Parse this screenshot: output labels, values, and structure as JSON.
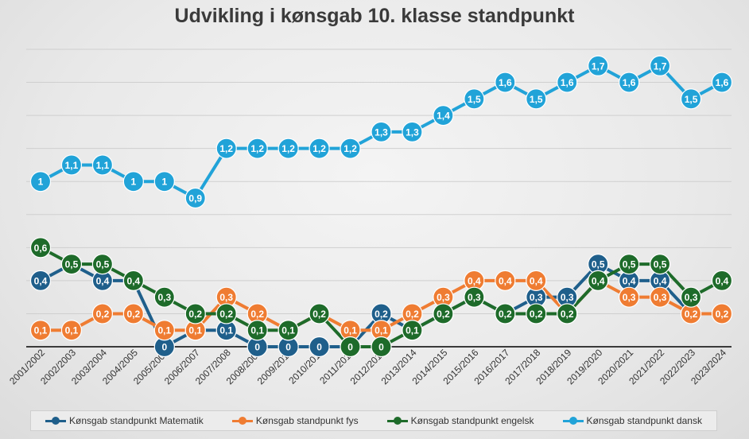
{
  "chart_data": {
    "type": "line",
    "title": "Udvikling i kønsgab 10. klasse standpunkt",
    "categories": [
      "2001/2002",
      "2002/2003",
      "2003/2004",
      "2004/2005",
      "2005/2006",
      "2006/2007",
      "2007/2008",
      "2008/2009",
      "2009/2010",
      "2010/2011",
      "2011/2012",
      "2012/2013",
      "2013/2014",
      "2014/2015",
      "2015/2016",
      "2016/2017",
      "2017/2018",
      "2018/2019",
      "2019/2020",
      "2020/2021",
      "2021/2022",
      "2022/2023",
      "2023/2024"
    ],
    "ylim": [
      0,
      1.8
    ],
    "grid": true,
    "legend_position": "bottom",
    "series": [
      {
        "name": "Kønsgab standpunkt Matematik",
        "color": "#1f5f8b",
        "values": [
          0.4,
          0.5,
          0.4,
          0.4,
          0,
          0.1,
          0.1,
          0,
          0,
          0,
          0,
          0.2,
          0.1,
          0.2,
          0.3,
          0.2,
          0.3,
          0.3,
          0.5,
          0.4,
          0.4,
          0.2,
          0.2
        ],
        "labels": [
          "0,4",
          "0,5",
          "0,4",
          "0,4",
          "0",
          "0,1",
          "0,1",
          "0",
          "0",
          "0",
          "0",
          "0,2",
          "0,1",
          "0,2",
          "0,3",
          "0,2",
          "0,3",
          "0,3",
          "0,5",
          "0,4",
          "0,4",
          "0,2",
          "0,2"
        ]
      },
      {
        "name": "Kønsgab standpunkt fys",
        "color": "#ef7c32",
        "values": [
          0.1,
          0.1,
          0.2,
          0.2,
          0.1,
          0.1,
          0.3,
          0.2,
          0.1,
          0.2,
          0.1,
          0.1,
          0.2,
          0.3,
          0.4,
          0.4,
          0.4,
          0.2,
          0.4,
          0.3,
          0.3,
          0.2,
          0.2
        ],
        "labels": [
          "0,1",
          "0,1",
          "0,2",
          "0,2",
          "0,1",
          "0,1",
          "0,3",
          "0,2",
          "0,1",
          "0,2",
          "0,1",
          "0,1",
          "0,2",
          "0,3",
          "0,4",
          "0,4",
          "0,4",
          "0,2",
          "0,4",
          "0,3",
          "0,3",
          "0,2",
          "0,2"
        ]
      },
      {
        "name": "Kønsgab standpunkt engelsk",
        "color": "#1e6b2a",
        "values": [
          0.6,
          0.5,
          0.5,
          0.4,
          0.3,
          0.2,
          0.2,
          0.1,
          0.1,
          0.2,
          0,
          0,
          0.1,
          0.2,
          0.3,
          0.2,
          0.2,
          0.2,
          0.4,
          0.5,
          0.5,
          0.3,
          0.4
        ],
        "labels": [
          "0,6",
          "0,5",
          "0,5",
          "0,4",
          "0,3",
          "0,2",
          "0,2",
          "0,1",
          "0,1",
          "0,2",
          "0",
          "0",
          "0,1",
          "0,2",
          "0,3",
          "0,2",
          "0,2",
          "0,2",
          "0,4",
          "0,5",
          "0,5",
          "0,3",
          "0,4"
        ]
      },
      {
        "name": "Kønsgab standpunkt dansk",
        "color": "#21a3d8",
        "values": [
          1,
          1.1,
          1.1,
          1,
          1,
          0.9,
          1.2,
          1.2,
          1.2,
          1.2,
          1.2,
          1.3,
          1.3,
          1.4,
          1.5,
          1.6,
          1.5,
          1.6,
          1.7,
          1.6,
          1.7,
          1.5,
          1.6
        ],
        "labels": [
          "1",
          "1,1",
          "1,1",
          "1",
          "1",
          "0,9",
          "1,2",
          "1,2",
          "1,2",
          "1,2",
          "1,2",
          "1,3",
          "1,3",
          "1,4",
          "1,5",
          "1,6",
          "1,5",
          "1,6",
          "1,7",
          "1,6",
          "1,7",
          "1,5",
          "1,6"
        ]
      }
    ]
  }
}
